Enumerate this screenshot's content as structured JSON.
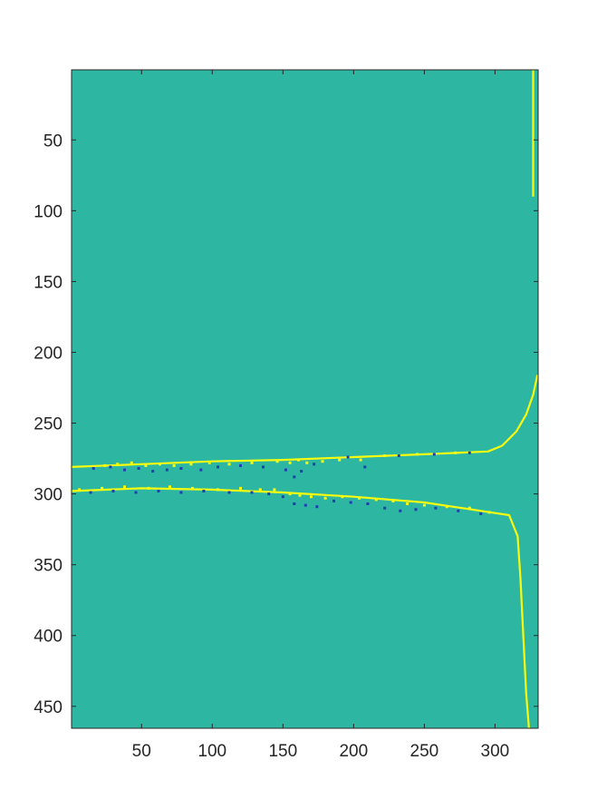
{
  "chart_data": {
    "type": "heatmap",
    "title": "",
    "xlabel": "",
    "ylabel": "",
    "xlim": [
      0.5,
      330.5
    ],
    "ylim": [
      465.5,
      0.5
    ],
    "y_direction": "reversed",
    "x_ticks": [
      50,
      100,
      150,
      200,
      250,
      300
    ],
    "y_ticks": [
      50,
      100,
      150,
      200,
      250,
      300,
      350,
      400,
      450
    ],
    "colormap": "parula",
    "colors": {
      "background": "#2db7a3",
      "high": "#f9fb0e",
      "low": "#1f3fb0",
      "mid_high": "#c8c322",
      "mid_low": "#3a8fd0"
    },
    "grid": false,
    "legend": "none",
    "features": {
      "upper_band": {
        "description_points": [
          [
            0,
            281
          ],
          [
            50,
            279
          ],
          [
            100,
            277
          ],
          [
            150,
            276
          ],
          [
            200,
            274
          ],
          [
            250,
            272
          ],
          [
            295,
            270
          ],
          [
            305,
            266
          ],
          [
            315,
            256
          ],
          [
            322,
            244
          ],
          [
            327,
            230
          ],
          [
            330,
            216
          ]
        ],
        "color": "high"
      },
      "lower_band": {
        "description_points": [
          [
            0,
            298
          ],
          [
            50,
            296
          ],
          [
            100,
            297
          ],
          [
            150,
            299
          ],
          [
            200,
            302
          ],
          [
            250,
            306
          ],
          [
            290,
            312
          ],
          [
            310,
            315
          ],
          [
            316,
            330
          ],
          [
            318,
            360
          ],
          [
            320,
            400
          ],
          [
            322,
            440
          ],
          [
            324,
            466
          ]
        ],
        "color": "high"
      },
      "right_edge_line": {
        "description_points": [
          [
            327,
            0
          ],
          [
            327,
            90
          ]
        ],
        "color": "high"
      },
      "speckles": [
        [
          16,
          282,
          "low"
        ],
        [
          24,
          280,
          "high"
        ],
        [
          28,
          281,
          "low"
        ],
        [
          33,
          279,
          "high"
        ],
        [
          38,
          283,
          "low"
        ],
        [
          43,
          278,
          "high"
        ],
        [
          48,
          282,
          "low"
        ],
        [
          53,
          280,
          "high"
        ],
        [
          58,
          284,
          "low"
        ],
        [
          63,
          279,
          "high"
        ],
        [
          68,
          283,
          "low"
        ],
        [
          73,
          280,
          "high"
        ],
        [
          78,
          282,
          "low"
        ],
        [
          85,
          279,
          "high"
        ],
        [
          92,
          283,
          "low"
        ],
        [
          98,
          278,
          "high"
        ],
        [
          104,
          281,
          "low"
        ],
        [
          112,
          279,
          "high"
        ],
        [
          120,
          280,
          "low"
        ],
        [
          128,
          278,
          "high"
        ],
        [
          136,
          281,
          "low"
        ],
        [
          146,
          277,
          "high"
        ],
        [
          152,
          283,
          "low"
        ],
        [
          155,
          278,
          "high"
        ],
        [
          158,
          288,
          "low"
        ],
        [
          161,
          276,
          "high"
        ],
        [
          163,
          284,
          "low"
        ],
        [
          167,
          278,
          "high"
        ],
        [
          172,
          279,
          "low"
        ],
        [
          178,
          277,
          "high"
        ],
        [
          190,
          276,
          "high"
        ],
        [
          196,
          274,
          "low"
        ],
        [
          205,
          276,
          "high"
        ],
        [
          208,
          281,
          "low"
        ],
        [
          222,
          273,
          "high"
        ],
        [
          232,
          273,
          "low"
        ],
        [
          245,
          272,
          "high"
        ],
        [
          257,
          272,
          "low"
        ],
        [
          272,
          271,
          "high"
        ],
        [
          282,
          271,
          "low"
        ],
        [
          6,
          297,
          "high"
        ],
        [
          14,
          299,
          "low"
        ],
        [
          22,
          296,
          "high"
        ],
        [
          30,
          298,
          "low"
        ],
        [
          38,
          295,
          "high"
        ],
        [
          46,
          299,
          "low"
        ],
        [
          55,
          296,
          "high"
        ],
        [
          62,
          298,
          "low"
        ],
        [
          70,
          295,
          "high"
        ],
        [
          78,
          299,
          "low"
        ],
        [
          86,
          296,
          "high"
        ],
        [
          94,
          298,
          "low"
        ],
        [
          104,
          297,
          "high"
        ],
        [
          112,
          299,
          "low"
        ],
        [
          120,
          296,
          "high"
        ],
        [
          128,
          299,
          "low"
        ],
        [
          134,
          297,
          "high"
        ],
        [
          140,
          300,
          "low"
        ],
        [
          144,
          297,
          "high"
        ],
        [
          150,
          302,
          "low"
        ],
        [
          155,
          300,
          "high"
        ],
        [
          158,
          307,
          "low"
        ],
        [
          162,
          301,
          "high"
        ],
        [
          166,
          308,
          "low"
        ],
        [
          170,
          302,
          "high"
        ],
        [
          174,
          309,
          "low"
        ],
        [
          180,
          303,
          "high"
        ],
        [
          186,
          305,
          "low"
        ],
        [
          192,
          302,
          "high"
        ],
        [
          198,
          306,
          "low"
        ],
        [
          204,
          303,
          "high"
        ],
        [
          210,
          307,
          "low"
        ],
        [
          216,
          304,
          "high"
        ],
        [
          222,
          310,
          "low"
        ],
        [
          228,
          305,
          "high"
        ],
        [
          233,
          312,
          "low"
        ],
        [
          238,
          307,
          "high"
        ],
        [
          244,
          311,
          "low"
        ],
        [
          250,
          308,
          "high"
        ],
        [
          258,
          310,
          "low"
        ],
        [
          266,
          309,
          "high"
        ],
        [
          274,
          312,
          "low"
        ],
        [
          282,
          310,
          "high"
        ],
        [
          290,
          314,
          "low"
        ],
        [
          296,
          313,
          "high"
        ]
      ]
    }
  }
}
